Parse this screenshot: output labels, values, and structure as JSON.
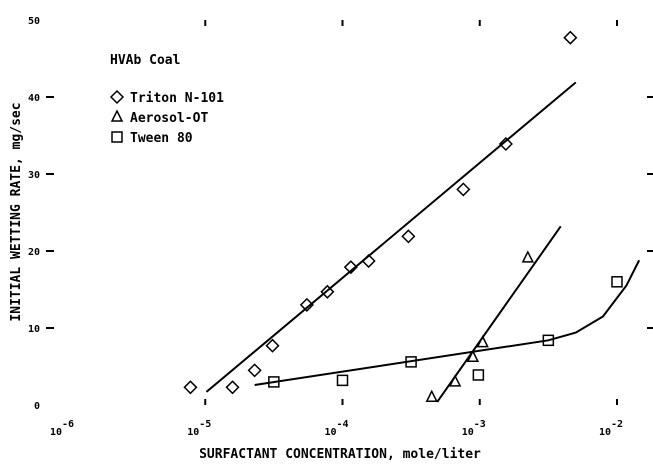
{
  "chart_data": {
    "type": "scatter",
    "title": "HVAb Coal",
    "xlabel": "SURFACTANT CONCENTRATION, mole/liter",
    "ylabel": "INITIAL WETTING RATE, mg/sec",
    "xscale": "log",
    "xlim": [
      1e-06,
      0.01
    ],
    "xticks": [
      {
        "value": 1e-06,
        "label": "10",
        "exponent": "-6"
      },
      {
        "value": 1e-05,
        "label": "10",
        "exponent": "-5"
      },
      {
        "value": 0.0001,
        "label": "10",
        "exponent": "-4"
      },
      {
        "value": 0.001,
        "label": "10",
        "exponent": "-3"
      },
      {
        "value": 0.01,
        "label": "10",
        "exponent": "-2"
      }
    ],
    "ylim": [
      0,
      50
    ],
    "yticks": [
      0,
      10,
      20,
      30,
      40,
      50
    ],
    "color": "#000000",
    "series": [
      {
        "name": "Triton N-101",
        "marker": "diamond",
        "x": [
          7.8e-06,
          1.58e-05,
          2.29e-05,
          3.09e-05,
          5.5e-05,
          7.76e-05,
          0.000115,
          0.000155,
          0.000302,
          0.000759,
          0.00155,
          0.00457
        ],
        "values": [
          2.3,
          2.3,
          4.5,
          7.7,
          13,
          14.7,
          17.9,
          18.7,
          21.9,
          28,
          33.9,
          47.7
        ],
        "fit": {
          "x": [
            1.02e-05,
            0.00501
          ],
          "values": [
            1.7,
            41.9
          ]
        }
      },
      {
        "name": "Aerosol-OT",
        "marker": "triangle",
        "x": [
          0.000447,
          0.000661,
          0.000891,
          0.00105,
          0.00224
        ],
        "values": [
          1.0,
          3.0,
          6.2,
          8.1,
          19.1
        ],
        "fit": {
          "x": [
            0.00049,
            0.00389
          ],
          "values": [
            0.4,
            23.2
          ]
        }
      },
      {
        "name": "Tween 80",
        "marker": "square",
        "x": [
          3.16e-05,
          0.0001,
          0.000316,
          0.000977,
          0.00316,
          0.01
        ],
        "values": [
          3.0,
          3.2,
          5.6,
          3.9,
          8.4,
          16.0
        ],
        "fit": {
          "x": [
            2.29e-05,
            0.00316,
            0.00501,
            0.0079,
            0.0117,
            0.0145
          ],
          "values": [
            2.6,
            8.4,
            9.4,
            11.5,
            15.5,
            18.8
          ]
        }
      }
    ]
  }
}
